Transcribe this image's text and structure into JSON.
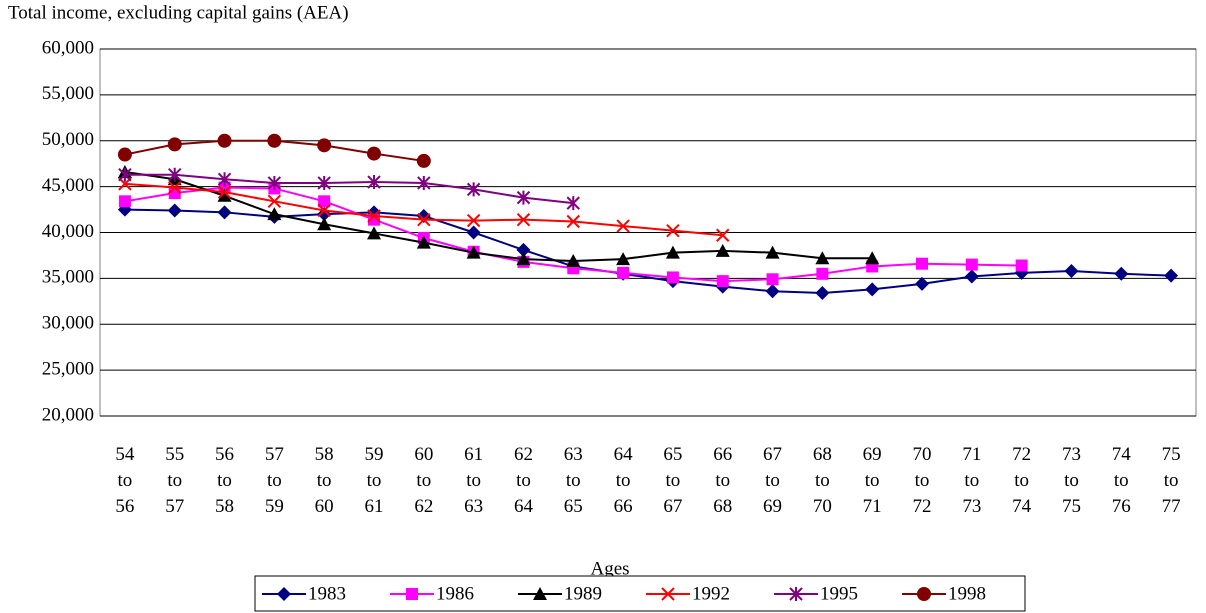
{
  "chart_data": {
    "type": "line",
    "title": "Total income, excluding capital gains (AEA)",
    "x_label": "Ages",
    "categories": [
      "54 to 56",
      "55 to 57",
      "56 to 58",
      "57 to 59",
      "58 to 60",
      "59 to 61",
      "60 to 62",
      "61 to 63",
      "62 to 64",
      "63 to 65",
      "64 to 66",
      "65 to 67",
      "66 to 68",
      "67 to 69",
      "68 to 70",
      "69 to 71",
      "70 to 72",
      "71 to 73",
      "72 to 74",
      "73 to 75",
      "74 to 76",
      "75 to 77"
    ],
    "ylim": [
      20000,
      60000
    ],
    "yticks": [
      {
        "value": 20000,
        "label": "20,000"
      },
      {
        "value": 25000,
        "label": "25,000"
      },
      {
        "value": 30000,
        "label": "30,000"
      },
      {
        "value": 35000,
        "label": "35,000"
      },
      {
        "value": 40000,
        "label": "40,000"
      },
      {
        "value": 45000,
        "label": "45,000"
      },
      {
        "value": 50000,
        "label": "50,000"
      },
      {
        "value": 55000,
        "label": "55,000"
      },
      {
        "value": 60000,
        "label": "60,000"
      }
    ],
    "grid": true,
    "legend": "bottom",
    "series": [
      {
        "name": "1983",
        "color": "#000080",
        "marker": "diamond",
        "values": [
          42500,
          42400,
          42200,
          41700,
          42000,
          42200,
          41800,
          40000,
          38100,
          36300,
          35500,
          34700,
          34100,
          33600,
          33400,
          33800,
          34400,
          35200,
          35600,
          35800,
          35500,
          35300
        ]
      },
      {
        "name": "1986",
        "color": "#ff00ff",
        "marker": "square",
        "values": [
          43400,
          44300,
          44900,
          44800,
          43400,
          41400,
          39400,
          37900,
          36800,
          36100,
          35600,
          35100,
          34700,
          34900,
          35500,
          36300,
          36600,
          36500,
          36400,
          null,
          null,
          null
        ]
      },
      {
        "name": "1989",
        "color": "#000000",
        "marker": "triangle",
        "values": [
          46600,
          45800,
          44000,
          42000,
          40900,
          39900,
          38900,
          37800,
          37100,
          36900,
          37100,
          37800,
          38000,
          37800,
          37200,
          37200,
          null,
          null,
          null,
          null,
          null,
          null
        ]
      },
      {
        "name": "1992",
        "color": "#ff0000",
        "marker": "x",
        "values": [
          45300,
          44900,
          44400,
          43400,
          42400,
          41800,
          41400,
          41300,
          41400,
          41200,
          40700,
          40200,
          39700,
          null,
          null,
          null,
          null,
          null,
          null,
          null,
          null,
          null
        ]
      },
      {
        "name": "1995",
        "color": "#800080",
        "marker": "asterisk",
        "values": [
          46300,
          46300,
          45800,
          45400,
          45400,
          45500,
          45400,
          44700,
          43800,
          43200,
          null,
          null,
          null,
          null,
          null,
          null,
          null,
          null,
          null,
          null,
          null,
          null
        ]
      },
      {
        "name": "1998",
        "color": "#800000",
        "marker": "circle",
        "values": [
          48500,
          49600,
          50000,
          50000,
          49500,
          48600,
          47800,
          null,
          null,
          null,
          null,
          null,
          null,
          null,
          null,
          null,
          null,
          null,
          null,
          null,
          null,
          null
        ]
      }
    ]
  }
}
